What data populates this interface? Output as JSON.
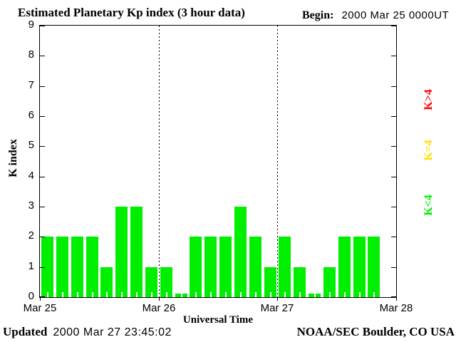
{
  "title": "Estimated Planetary Kp index (3 hour data)",
  "begin": {
    "label": "Begin:",
    "value": "2000 Mar 25 0000UT"
  },
  "axes": {
    "y_label": "K index",
    "x_label": "Universal Time"
  },
  "legend": {
    "items": [
      {
        "label": "K>4",
        "color": "#ff0000",
        "name": "legend-k-gt-4"
      },
      {
        "label": "K=4",
        "color": "#ffdd00",
        "name": "legend-k-eq-4"
      },
      {
        "label": "K<4",
        "color": "#00ee00",
        "name": "legend-k-lt-4"
      }
    ]
  },
  "footer": {
    "updated_label": "Updated",
    "updated_value": "2000 Mar 27 23:45:02",
    "credit": "NOAA/SEC Boulder, CO USA"
  },
  "chart_data": {
    "type": "bar",
    "title": "Estimated Planetary Kp index (3 hour data)",
    "xlabel": "Universal Time",
    "ylabel": "K index",
    "ylim": [
      0,
      9
    ],
    "yticks": [
      0,
      1,
      2,
      3,
      4,
      5,
      6,
      7,
      8,
      9
    ],
    "xticks": [
      "Mar 25",
      "Mar 26",
      "Mar 27",
      "Mar 28"
    ],
    "begin": "2000 Mar 25 0000UT",
    "interval_hours": 3,
    "bars_per_day": 8,
    "x_days_span": 3,
    "values": [
      2,
      2,
      2,
      2,
      1,
      3,
      3,
      1,
      1,
      0,
      2,
      2,
      2,
      3,
      2,
      1,
      2,
      1,
      0,
      1,
      2,
      2,
      2
    ],
    "note": "23 bars; final 3-hour period of Mar 27 not yet plotted",
    "color_rules": [
      {
        "condition": "K<4",
        "color": "#00ee00"
      },
      {
        "condition": "K=4",
        "color": "#ffdd00"
      },
      {
        "condition": "K>4",
        "color": "#ff0000"
      }
    ],
    "grid": "dotted vertical lines at day boundaries",
    "legend_position": "right",
    "bar_color_low": "#00ee00"
  }
}
